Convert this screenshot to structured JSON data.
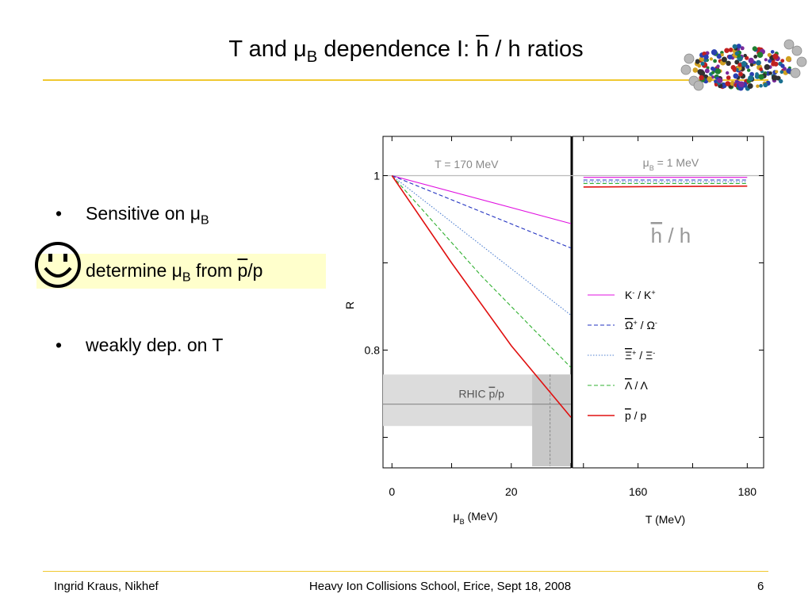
{
  "slide": {
    "title_pre": "T and μ",
    "title_sub": "B",
    "title_mid": " dependence I: ",
    "title_bar": "h",
    "title_post": " / h ratios",
    "bullets": {
      "b1_text": "Sensitive on μ",
      "b1_sub": "B",
      "b2_text": "determine μ",
      "b2_sub": "B",
      "b2_mid": " from ",
      "b2_bar": "p",
      "b2_post": "/p",
      "b3_text": "weakly dep. on T",
      "bullet_char": "•"
    },
    "footer": {
      "left": "Ingrid Kraus, Nikhef",
      "center": "Heavy Ion Collisions School, Erice, Sept 18, 2008",
      "right": "6"
    },
    "colors": {
      "accent_line": "#f0c830",
      "highlight": "#ffffcc"
    }
  },
  "chart_data": [
    {
      "type": "line",
      "ylabel": "R",
      "xlabel_pre": "μ",
      "xlabel_sub": "B",
      "xlabel_post": " (MeV)",
      "xlim": [
        -1.5,
        30
      ],
      "ylim": [
        0.665,
        1.045
      ],
      "xticks": [
        "0",
        "20"
      ],
      "yticks": [
        "1",
        "0.8"
      ],
      "annotation": "T = 170 MeV",
      "rhic_band": {
        "label_pre": "RHIC ",
        "label_bar": "p",
        "label_post": "/p",
        "y_central": 0.738,
        "y_low": 0.713,
        "y_high": 0.772,
        "mu_central": 26.5,
        "mu_low": 23.5,
        "mu_high": 30
      },
      "series": [
        {
          "color": "#e010e0",
          "dash": "solid",
          "x": [
            0,
            30
          ],
          "y": [
            1.0,
            0.945
          ]
        },
        {
          "color": "#2030c0",
          "dash": "dashed",
          "x": [
            0,
            30
          ],
          "y": [
            1.0,
            0.917
          ]
        },
        {
          "color": "#5080d0",
          "dash": "dotted",
          "x": [
            0,
            30
          ],
          "y": [
            1.0,
            0.84
          ]
        },
        {
          "color": "#30b030",
          "dash": "dashed",
          "x": [
            0,
            15,
            30
          ],
          "y": [
            1.0,
            0.885,
            0.78
          ]
        },
        {
          "color": "#e01010",
          "dash": "solid",
          "x": [
            0,
            10,
            20,
            30
          ],
          "y": [
            1.0,
            0.9,
            0.805,
            0.723
          ]
        }
      ]
    },
    {
      "type": "line",
      "xlabel": "T (MeV)",
      "xlim": [
        148,
        183
      ],
      "xticks": [
        "160",
        "180"
      ],
      "annotation_pre": "μ",
      "annotation_sub": "B",
      "annotation_post": " = 1 MeV",
      "ratio_label_bar": "h",
      "ratio_label_post": " / h",
      "series": [
        {
          "color": "#e010e0",
          "dash": "solid",
          "x": [
            150,
            180
          ],
          "y": [
            0.998,
            0.998
          ]
        },
        {
          "color": "#2030c0",
          "dash": "dashed",
          "x": [
            150,
            180
          ],
          "y": [
            0.995,
            0.995
          ]
        },
        {
          "color": "#5080d0",
          "dash": "dotted",
          "x": [
            150,
            180
          ],
          "y": [
            0.993,
            0.993
          ]
        },
        {
          "color": "#30b030",
          "dash": "dashed",
          "x": [
            150,
            180
          ],
          "y": [
            0.991,
            0.991
          ]
        },
        {
          "color": "#e01010",
          "dash": "solid",
          "x": [
            150,
            180
          ],
          "y": [
            0.987,
            0.988
          ]
        }
      ],
      "legend": [
        {
          "color": "#e010e0",
          "dash": "solid",
          "a": "K",
          "a_sup": "-",
          "sep": " / ",
          "b": "K",
          "b_sup": "+",
          "a_bar": false
        },
        {
          "color": "#2030c0",
          "dash": "dashed",
          "a": "Ω",
          "a_sup": "+",
          "sep": " / ",
          "b": "Ω",
          "b_sup": "-",
          "a_bar": true
        },
        {
          "color": "#5080d0",
          "dash": "dotted",
          "a": "Ξ",
          "a_sup": "+",
          "sep": " / ",
          "b": "Ξ",
          "b_sup": "-",
          "a_bar": true
        },
        {
          "color": "#30b030",
          "dash": "dashed",
          "a": "Λ",
          "a_sup": "",
          "sep": " / ",
          "b": "Λ",
          "b_sup": "",
          "a_bar": true
        },
        {
          "color": "#e01010",
          "dash": "solid",
          "a": "p",
          "a_sup": "",
          "sep": " / ",
          "b": "p",
          "b_sup": "",
          "a_bar": true
        }
      ]
    }
  ]
}
